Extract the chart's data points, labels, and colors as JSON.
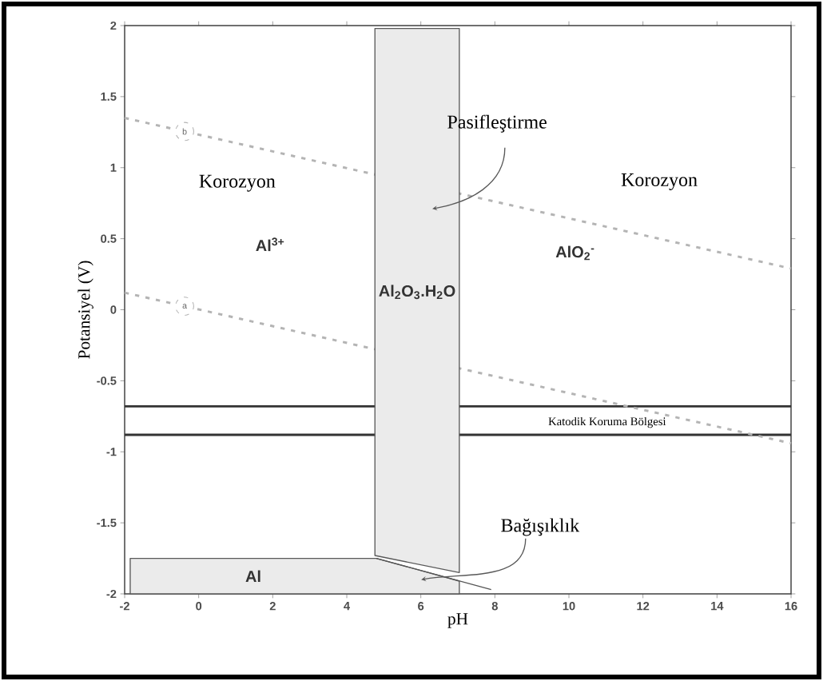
{
  "chart_data": {
    "type": "line",
    "xlabel": "pH",
    "ylabel": "Potansiyel (V)",
    "legend": "left",
    "xlim": [
      -2,
      16
    ],
    "ylim": [
      -2,
      2
    ],
    "xticks": [
      -2,
      0,
      2,
      4,
      6,
      8,
      10,
      12,
      14,
      16
    ],
    "yticks": [
      -2,
      -1.5,
      -1,
      -0.5,
      0,
      0.5,
      1,
      1.5,
      2
    ],
    "ref_lines": [
      {
        "axis": "y",
        "value": -0.68,
        "color": "#333333"
      },
      {
        "axis": "y",
        "value": -0.88,
        "label": "Katodik Koruma Bölgesi",
        "color": "#333333"
      }
    ],
    "series": [
      {
        "name": "b",
        "color": "#b4b4b4",
        "line_style": "dashed",
        "x": [
          -2,
          16
        ],
        "values": [
          1.35,
          0.29
        ]
      },
      {
        "name": "a",
        "color": "#b4b4b4",
        "line_style": "dashed",
        "x": [
          -2,
          16
        ],
        "values": [
          0.12,
          -0.94
        ]
      },
      {
        "name": "Al$_{2}$O$_{3}$.H$_{2}$O",
        "type": "area",
        "color": "#ebebeb",
        "x": [
          4.76,
          7.04,
          7.04,
          4.76,
          4.76
        ],
        "values": [
          1.98,
          1.98,
          -1.85,
          -1.73,
          1.98
        ]
      },
      {
        "name": "Al",
        "type": "area",
        "color": "#ebebeb",
        "x": [
          -1.85,
          4.8,
          7.04,
          7.04,
          -1.85,
          -1.85
        ],
        "values": [
          -1.75,
          -1.75,
          -1.91,
          -2,
          -2,
          -1.75
        ]
      },
      {
        "color": "#555555",
        "line_style": "solid",
        "x": [
          4.8,
          7.9
        ],
        "values": [
          -1.75,
          -1.97
        ]
      }
    ],
    "annotations": [
      "Pasifleştirme",
      "Korozyon",
      "Korozyon",
      "Al$^{3+}$",
      "AlO$_{2}$$^{-}$",
      "Bağışıklık"
    ]
  }
}
